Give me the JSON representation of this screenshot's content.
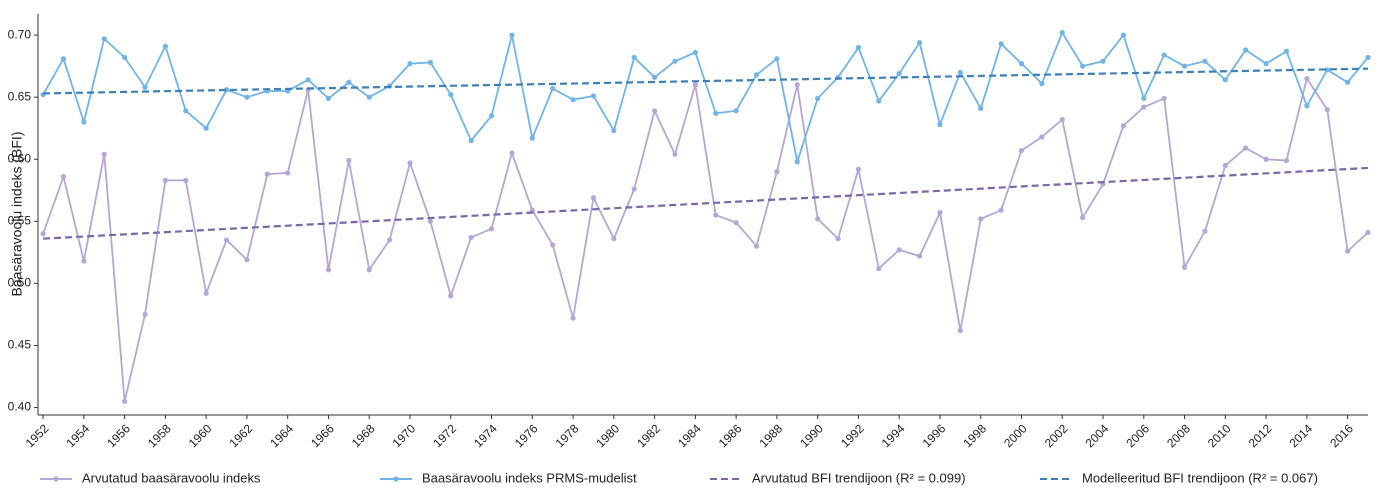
{
  "chart_data": {
    "type": "line",
    "y_label": "Baasäravoolu indeks (BFI)",
    "xlim": [
      1951.75,
      2017
    ],
    "ylim": [
      0.394,
      0.717
    ],
    "xticks": [
      1952,
      1954,
      1956,
      1958,
      1960,
      1962,
      1964,
      1966,
      1968,
      1970,
      1972,
      1974,
      1976,
      1978,
      1980,
      1982,
      1984,
      1986,
      1988,
      1990,
      1992,
      1994,
      1996,
      1998,
      2000,
      2002,
      2004,
      2006,
      2008,
      2010,
      2012,
      2014,
      2016
    ],
    "yticks": [
      {
        "value": 0.4,
        "label": "0.40"
      },
      {
        "value": 0.45,
        "label": "0.45"
      },
      {
        "value": 0.5,
        "label": "0.50"
      },
      {
        "value": 0.55,
        "label": "0.55"
      },
      {
        "value": 0.6,
        "label": "0.60"
      },
      {
        "value": 0.65,
        "label": "0.65"
      },
      {
        "value": 0.7,
        "label": "0.70"
      }
    ],
    "grid": false,
    "legend": "bottom",
    "x": [
      1952,
      1953,
      1954,
      1955,
      1956,
      1957,
      1958,
      1959,
      1960,
      1961,
      1962,
      1963,
      1964,
      1965,
      1966,
      1967,
      1968,
      1969,
      1970,
      1971,
      1972,
      1973,
      1974,
      1975,
      1976,
      1977,
      1978,
      1979,
      1980,
      1981,
      1982,
      1983,
      1984,
      1985,
      1986,
      1987,
      1988,
      1989,
      1990,
      1991,
      1992,
      1993,
      1994,
      1995,
      1996,
      1997,
      1998,
      1999,
      2000,
      2001,
      2002,
      2003,
      2004,
      2005,
      2006,
      2007,
      2008,
      2009,
      2010,
      2011,
      2012,
      2013,
      2014,
      2015,
      2016,
      2017
    ],
    "series": [
      {
        "name": "Arvutatud baasäravoolu indeks",
        "color": "#b4a7d6",
        "markers": true,
        "values": [
          0.54,
          0.586,
          0.518,
          0.604,
          0.405,
          0.475,
          0.583,
          0.583,
          0.492,
          0.535,
          0.519,
          0.588,
          0.589,
          0.656,
          0.511,
          0.599,
          0.511,
          0.535,
          0.597,
          0.55,
          0.49,
          0.537,
          0.544,
          0.605,
          0.559,
          0.531,
          0.472,
          0.569,
          0.536,
          0.576,
          0.639,
          0.604,
          0.66,
          0.555,
          0.549,
          0.53,
          0.59,
          0.66,
          0.552,
          0.536,
          0.592,
          0.512,
          0.527,
          0.522,
          0.557,
          0.462,
          0.552,
          0.559,
          0.607,
          0.618,
          0.632,
          0.553,
          0.58,
          0.627,
          0.642,
          0.649,
          0.513,
          0.542,
          0.595,
          0.609,
          0.6,
          0.599,
          0.665,
          0.64,
          0.526,
          0.541
        ]
      },
      {
        "name": "Baasäravoolu indeks PRMS-mudelist",
        "color": "#72b4e6",
        "markers": true,
        "values": [
          0.652,
          0.681,
          0.63,
          0.697,
          0.682,
          0.658,
          0.691,
          0.639,
          0.625,
          0.656,
          0.65,
          0.655,
          0.655,
          0.664,
          0.649,
          0.662,
          0.65,
          0.659,
          0.677,
          0.678,
          0.652,
          0.615,
          0.635,
          0.7,
          0.617,
          0.657,
          0.648,
          0.651,
          0.623,
          0.682,
          0.666,
          0.679,
          0.686,
          0.637,
          0.639,
          0.668,
          0.681,
          0.598,
          0.649,
          0.666,
          0.69,
          0.647,
          0.669,
          0.694,
          0.628,
          0.67,
          0.641,
          0.693,
          0.677,
          0.661,
          0.702,
          0.675,
          0.679,
          0.7,
          0.649,
          0.684,
          0.675,
          0.679,
          0.664,
          0.688,
          0.677,
          0.687,
          0.643,
          0.672,
          0.662,
          0.682
        ]
      },
      {
        "name": "Arvutatud BFI trendijoon (R² = 0.099)",
        "color": "#7a67a8",
        "dashed": true,
        "x": [
          1952,
          2017
        ],
        "values": [
          0.536,
          0.593
        ]
      },
      {
        "name": "Modelleeritud BFI trendijoon (R² = 0.067)",
        "color": "#3d7fb8",
        "dashed": true,
        "x": [
          1952,
          2017
        ],
        "values": [
          0.653,
          0.673
        ]
      }
    ]
  }
}
